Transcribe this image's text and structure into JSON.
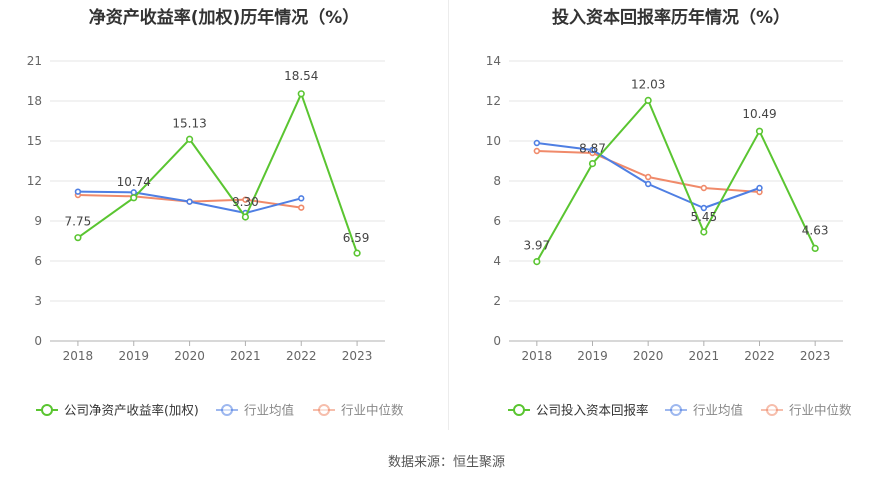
{
  "chart_data": [
    {
      "type": "line",
      "title": "净资产收益率(加权)历年情况（%）",
      "categories": [
        "2018",
        "2019",
        "2020",
        "2021",
        "2022",
        "2023"
      ],
      "ylim": [
        0,
        21
      ],
      "yticks": [
        "0",
        "3",
        "6",
        "9",
        "12",
        "15",
        "18",
        "21"
      ],
      "grid": true,
      "legend_position": "bottom",
      "series": [
        {
          "name": "公司净资产收益率(加权)",
          "color": "#5ac531",
          "values": [
            7.75,
            10.74,
            15.13,
            9.3,
            18.54,
            6.59
          ],
          "labels": [
            "7.75",
            "10.74",
            "15.13",
            "9.30",
            "18.54",
            "6.59"
          ]
        },
        {
          "name": "行业均值",
          "color": "#4f7fe3",
          "values": [
            11.2,
            11.15,
            10.45,
            9.6,
            10.7,
            null
          ]
        },
        {
          "name": "行业中位数",
          "color": "#f08a6a",
          "values": [
            10.95,
            10.85,
            10.45,
            10.6,
            10.0,
            null
          ]
        }
      ]
    },
    {
      "type": "line",
      "title": "投入资本回报率历年情况（%）",
      "categories": [
        "2018",
        "2019",
        "2020",
        "2021",
        "2022",
        "2023"
      ],
      "ylim": [
        0,
        14
      ],
      "yticks": [
        "0",
        "2",
        "4",
        "6",
        "8",
        "10",
        "12",
        "14"
      ],
      "grid": true,
      "legend_position": "bottom",
      "series": [
        {
          "name": "公司投入资本回报率",
          "color": "#5ac531",
          "values": [
            3.97,
            8.87,
            12.03,
            5.45,
            10.49,
            4.63
          ],
          "labels": [
            "3.97",
            "8.87",
            "12.03",
            "5.45",
            "10.49",
            "4.63"
          ]
        },
        {
          "name": "行业均值",
          "color": "#4f7fe3",
          "values": [
            9.9,
            9.55,
            7.85,
            6.65,
            7.65,
            null
          ]
        },
        {
          "name": "行业中位数",
          "color": "#f08a6a",
          "values": [
            9.5,
            9.4,
            8.2,
            7.65,
            7.45,
            null
          ]
        }
      ]
    }
  ],
  "source_text": "数据来源：恒生聚源"
}
